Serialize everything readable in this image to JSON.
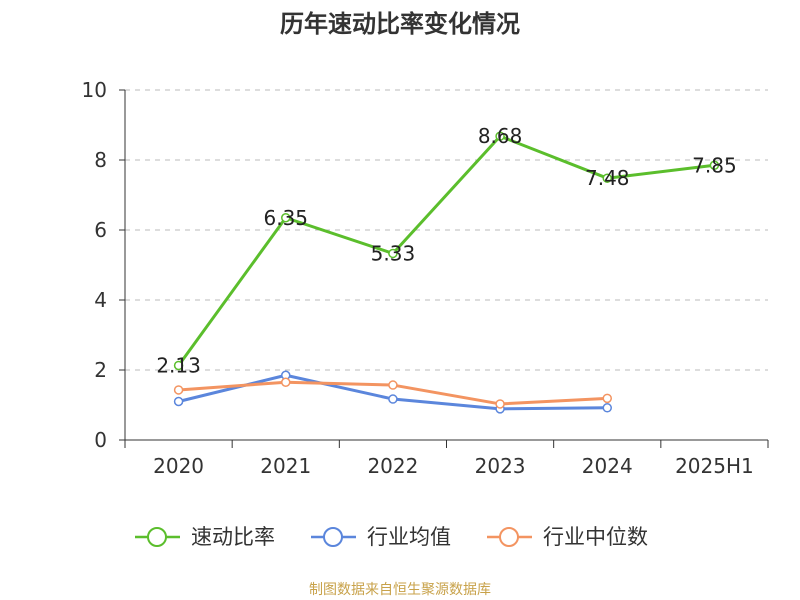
{
  "chart_data": {
    "type": "line",
    "title": "历年速动比率变化情况",
    "categories": [
      "2020",
      "2021",
      "2022",
      "2023",
      "2024",
      "2025H1"
    ],
    "ylim": [
      0,
      10
    ],
    "yticks": [
      "0",
      "2",
      "4",
      "6",
      "8",
      "10"
    ],
    "grid": "horizontal dashed",
    "legend_position": "bottom",
    "series": [
      {
        "name": "速动比率",
        "color": "#5BBE2C",
        "values": [
          2.13,
          6.35,
          5.33,
          8.68,
          7.48,
          7.85
        ],
        "labels": [
          "2.13",
          "6.35",
          "5.33",
          "8.68",
          "7.48",
          "7.85"
        ]
      },
      {
        "name": "行业均值",
        "color": "#5B86DC",
        "values": [
          1.1,
          1.85,
          1.17,
          0.89,
          0.92,
          null
        ]
      },
      {
        "name": "行业中位数",
        "color": "#F39461",
        "values": [
          1.43,
          1.65,
          1.57,
          1.03,
          1.19,
          null
        ]
      }
    ],
    "source": "制图数据来自恒生聚源数据库",
    "source_color": "#C8A24A"
  }
}
